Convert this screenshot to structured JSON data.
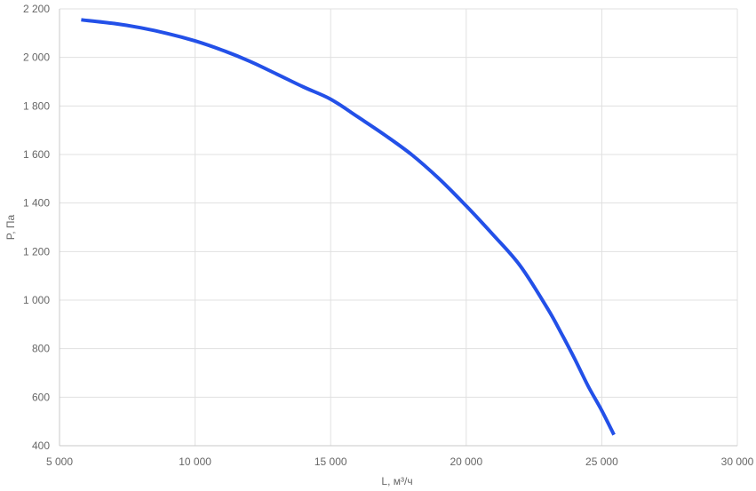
{
  "chart_data": {
    "type": "line",
    "title": "",
    "xlabel": "L, м³/ч",
    "ylabel": "P, Па",
    "xlim": [
      5000,
      30000
    ],
    "ylim": [
      400,
      2200
    ],
    "grid": true,
    "x_ticks": [
      5000,
      10000,
      15000,
      20000,
      25000,
      30000
    ],
    "x_tick_labels": [
      "5 000",
      "10 000",
      "15 000",
      "20 000",
      "25 000",
      "30 000"
    ],
    "y_ticks": [
      400,
      600,
      800,
      1000,
      1200,
      1400,
      1600,
      1800,
      2000,
      2200
    ],
    "y_tick_labels": [
      "400",
      "600",
      "800",
      "1 000",
      "1 200",
      "1 400",
      "1 600",
      "1 800",
      "2 000",
      "2 200"
    ],
    "series": [
      {
        "color": "#2350e8",
        "x": [
          5800,
          7000,
          8000,
          9000,
          10000,
          11000,
          12000,
          13000,
          14000,
          15000,
          16000,
          17000,
          18000,
          19000,
          20000,
          21000,
          22000,
          23000,
          23500,
          24000,
          24500,
          25000,
          25450
        ],
        "y": [
          2155,
          2140,
          2122,
          2098,
          2068,
          2030,
          1985,
          1932,
          1878,
          1828,
          1755,
          1680,
          1598,
          1500,
          1388,
          1268,
          1140,
          965,
          865,
          758,
          645,
          545,
          445
        ]
      }
    ]
  }
}
